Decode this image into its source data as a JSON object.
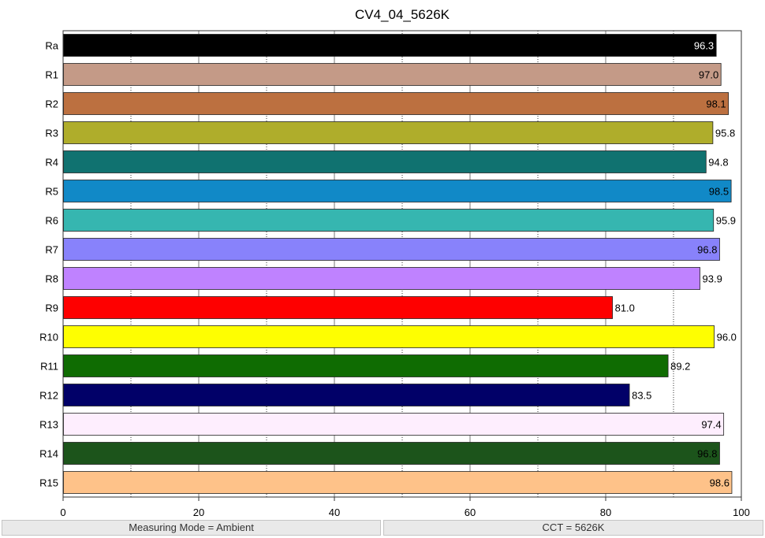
{
  "chart_data": {
    "type": "bar",
    "orientation": "horizontal",
    "title": "CV4_04_5626K",
    "xlabel": "",
    "ylabel": "",
    "xlim": [
      0,
      100
    ],
    "x_ticks": [
      0,
      20,
      40,
      60,
      80,
      100
    ],
    "grid": "vertical dotted at 10, 30, 50, 70, 90; solid at 20, 40, 60, 80",
    "categories": [
      "Ra",
      "R1",
      "R2",
      "R3",
      "R4",
      "R5",
      "R6",
      "R7",
      "R8",
      "R9",
      "R10",
      "R11",
      "R12",
      "R13",
      "R14",
      "R15"
    ],
    "values": [
      96.3,
      97.0,
      98.1,
      95.8,
      94.8,
      98.5,
      95.9,
      96.8,
      93.9,
      81.0,
      96.0,
      89.2,
      83.5,
      97.4,
      96.8,
      98.6
    ],
    "value_labels": [
      "96.3",
      "97.0",
      "98.1",
      "95.8",
      "94.8",
      "98.5",
      "95.9",
      "96.8",
      "93.9",
      "81.0",
      "96.0",
      "89.2",
      "83.5",
      "97.4",
      "96.8",
      "98.6"
    ],
    "colors": [
      "#000000",
      "#c49a87",
      "#bc7040",
      "#afad2b",
      "#107270",
      "#1189c7",
      "#36b6b0",
      "#8882fb",
      "#bf82ff",
      "#fe0000",
      "#fefe01",
      "#0f6c02",
      "#010068",
      "#feeefe",
      "#1c541b",
      "#fec289"
    ],
    "label_colors": [
      "#ffffff",
      "#000000",
      "#000000",
      "#000000",
      "#000000",
      "#000000",
      "#000000",
      "#000000",
      "#000000",
      "#000000",
      "#000000",
      "#000000",
      "#000000",
      "#000000",
      "#000000",
      "#000000"
    ],
    "label_inside": [
      true,
      true,
      true,
      false,
      false,
      true,
      false,
      true,
      false,
      false,
      false,
      false,
      false,
      true,
      true,
      true
    ]
  },
  "status": {
    "left": "Measuring Mode = Ambient",
    "right": "CCT = 5626K"
  }
}
